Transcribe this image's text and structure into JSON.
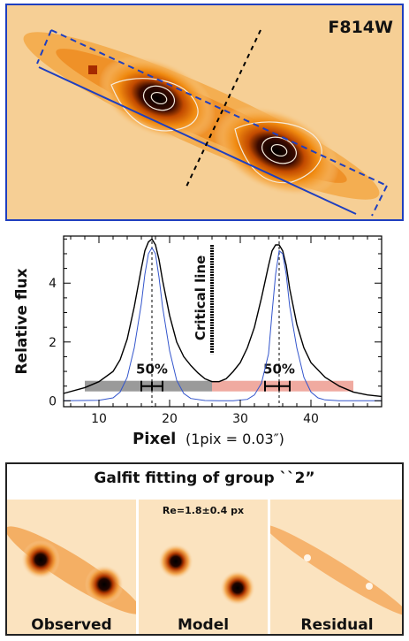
{
  "top_panel": {
    "filter": "F814W",
    "colors": {
      "frame": "#1f3fbf",
      "background": "#f6cf95",
      "core": "#000000"
    }
  },
  "chart_data": {
    "type": "line",
    "xlabel": "Pixel",
    "xlabel_note": "(1pix = 0.03″)",
    "ylabel": "Relative flux",
    "xlim": [
      5,
      50
    ],
    "ylim": [
      -0.2,
      5.6
    ],
    "xticks": [
      10,
      20,
      30,
      40
    ],
    "yticks": [
      0,
      2,
      4
    ],
    "annotation": "Critical line",
    "critical_line_x": 26,
    "peaks_x": [
      17.5,
      35.5
    ],
    "series": [
      {
        "color": "#000000",
        "x": [
          5,
          8,
          10,
          12,
          13,
          14,
          15,
          16,
          16.5,
          17,
          17.5,
          18,
          18.5,
          19,
          20,
          21,
          22,
          23,
          24,
          25,
          26,
          27,
          28,
          29,
          30,
          31,
          32,
          33,
          34,
          34.5,
          35,
          35.5,
          36,
          36.5,
          37,
          38,
          39,
          40,
          42,
          44,
          46,
          48,
          50
        ],
        "y": [
          0.25,
          0.45,
          0.65,
          1.0,
          1.4,
          2.1,
          3.2,
          4.5,
          5.1,
          5.4,
          5.5,
          5.3,
          4.8,
          4.1,
          2.9,
          2.0,
          1.5,
          1.2,
          0.95,
          0.75,
          0.65,
          0.65,
          0.75,
          1.0,
          1.3,
          1.8,
          2.5,
          3.5,
          4.6,
          5.1,
          5.3,
          5.3,
          5.1,
          4.6,
          3.8,
          2.6,
          1.8,
          1.3,
          0.8,
          0.5,
          0.3,
          0.2,
          0.15
        ]
      },
      {
        "color": "#3355cc",
        "x": [
          5,
          10,
          12,
          13,
          14,
          15,
          16,
          16.5,
          17,
          17.5,
          18,
          18.5,
          19,
          20,
          21,
          22,
          23,
          25,
          27,
          29,
          31,
          32,
          33,
          34,
          34.5,
          35,
          35.5,
          36,
          36.5,
          37,
          38,
          39,
          40,
          41,
          42,
          44,
          50
        ],
        "y": [
          0,
          0.02,
          0.1,
          0.3,
          0.8,
          1.8,
          3.3,
          4.3,
          5.0,
          5.2,
          5.0,
          4.2,
          3.2,
          1.7,
          0.7,
          0.25,
          0.08,
          0.01,
          0,
          0,
          0.05,
          0.2,
          0.6,
          1.6,
          3.0,
          4.3,
          5.1,
          5.0,
          4.3,
          3.2,
          1.8,
          0.8,
          0.3,
          0.1,
          0.03,
          0,
          0
        ]
      }
    ],
    "bands": [
      {
        "x0": 8,
        "x1": 26,
        "y": 0.5,
        "color": "#9a9a9a",
        "label": "50%",
        "err_center": 17.5,
        "err_lo": 16,
        "err_hi": 19
      },
      {
        "x0": 26,
        "x1": 46,
        "y": 0.5,
        "color": "#f0aaa0",
        "label": "50%",
        "err_center": 35.5,
        "err_lo": 33.5,
        "err_hi": 37
      }
    ]
  },
  "galfit": {
    "title": "Galfit fitting of group ``2”",
    "re_label": "Re=1.8±0.4 px",
    "panels": [
      {
        "label": "Observed"
      },
      {
        "label": "Model"
      },
      {
        "label": "Residual"
      }
    ]
  }
}
